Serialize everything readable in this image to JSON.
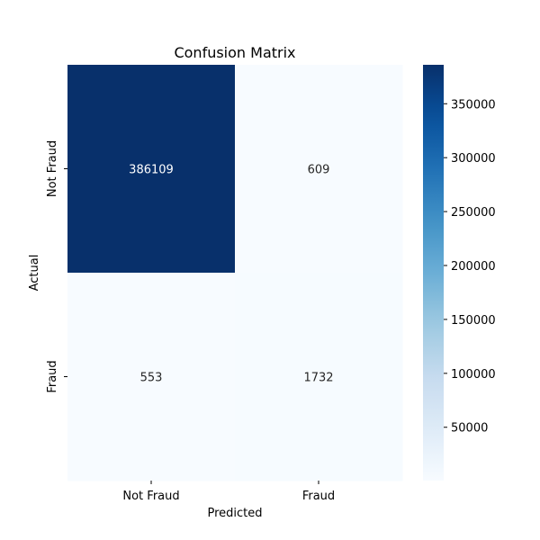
{
  "chart_data": {
    "type": "heatmap",
    "title": "Confusion Matrix",
    "xlabel": "Predicted",
    "ylabel": "Actual",
    "x_categories": [
      "Not Fraud",
      "Fraud"
    ],
    "y_categories": [
      "Not Fraud",
      "Fraud"
    ],
    "matrix": [
      [
        386109,
        609
      ],
      [
        553,
        1732
      ]
    ],
    "colormap": "Blues",
    "color_low": "#f7fbff",
    "color_high": "#08306b",
    "text_color_dark_cell": "#ffffff",
    "text_color_light_cell": "#262626",
    "colorbar": {
      "range": [
        553,
        386109
      ],
      "ticks": [
        50000,
        100000,
        150000,
        200000,
        250000,
        300000,
        350000
      ]
    }
  }
}
